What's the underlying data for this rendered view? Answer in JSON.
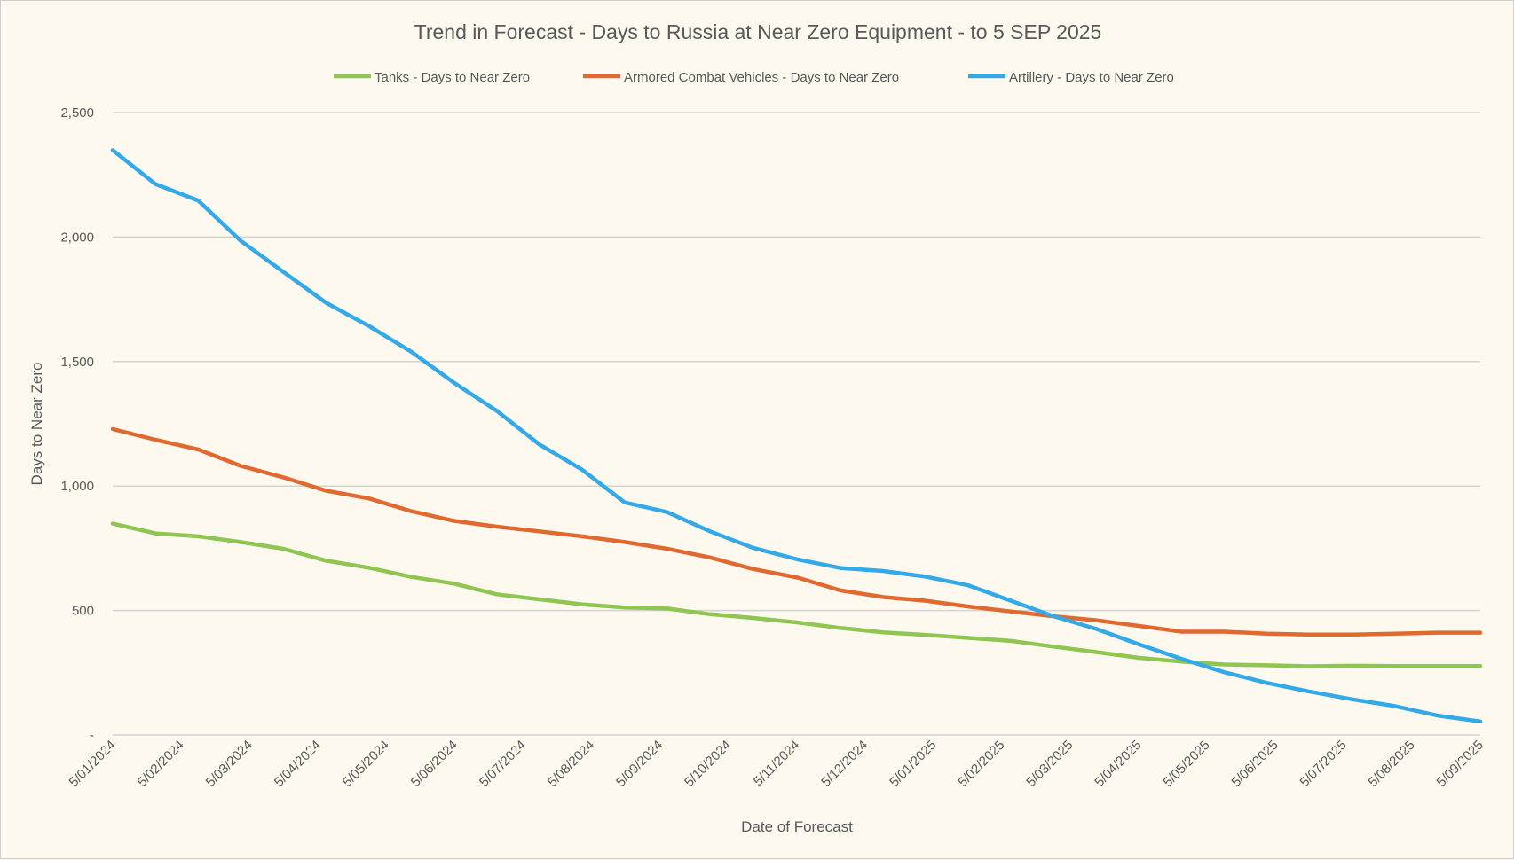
{
  "chart_data": {
    "type": "line",
    "title": "Trend in Forecast - Days to Russia at Near Zero Equipment - to 5 SEP 2025",
    "xlabel": "Date of Forecast",
    "ylabel": "Days to Near Zero",
    "ylim": [
      0,
      2500
    ],
    "yticks": [
      0,
      500,
      1000,
      1500,
      2000,
      2500
    ],
    "ytick_labels": [
      "-",
      "500",
      "1,000",
      "1,500",
      "2,000",
      "2,500"
    ],
    "xlim": [
      "2024-01-05",
      "2025-09-05"
    ],
    "xtick_labels": [
      "5/01/2024",
      "5/02/2024",
      "5/03/2024",
      "5/04/2024",
      "5/05/2024",
      "5/06/2024",
      "5/07/2024",
      "5/08/2024",
      "5/09/2024",
      "5/10/2024",
      "5/11/2024",
      "5/12/2024",
      "5/01/2025",
      "5/02/2025",
      "5/03/2025",
      "5/04/2025",
      "5/05/2025",
      "5/06/2025",
      "5/07/2025",
      "5/08/2025",
      "5/09/2025"
    ],
    "grid": true,
    "legend_position": "top",
    "x": [
      "2024-01-05",
      "2024-01-24",
      "2024-02-12",
      "2024-03-02",
      "2024-03-21",
      "2024-04-09",
      "2024-04-28",
      "2024-05-17",
      "2024-06-05",
      "2024-06-24",
      "2024-07-13",
      "2024-08-01",
      "2024-08-20",
      "2024-09-08",
      "2024-09-27",
      "2024-10-16",
      "2024-11-05",
      "2024-11-24",
      "2024-12-13",
      "2025-01-01",
      "2025-01-20",
      "2025-02-08",
      "2025-02-27",
      "2025-03-18",
      "2025-04-06",
      "2025-04-25",
      "2025-05-14",
      "2025-06-02",
      "2025-06-21",
      "2025-07-10",
      "2025-07-29",
      "2025-08-17",
      "2025-09-05"
    ],
    "series": [
      {
        "name": "Tanks - Days to Near Zero",
        "color": "#8fc651",
        "values": [
          849,
          810,
          798,
          775,
          748,
          700,
          672,
          635,
          608,
          565,
          545,
          525,
          512,
          508,
          485,
          470,
          452,
          430,
          412,
          402,
          390,
          378,
          355,
          333,
          310,
          295,
          283,
          280,
          276,
          278,
          277,
          277,
          277
        ]
      },
      {
        "name": "Armored Combat Vehicles - Days to Near Zero",
        "color": "#e0692f",
        "values": [
          1229,
          1186,
          1147,
          1081,
          1035,
          981,
          950,
          899,
          860,
          837,
          818,
          798,
          775,
          748,
          713,
          667,
          632,
          581,
          554,
          539,
          516,
          496,
          477,
          461,
          438,
          415,
          415,
          407,
          403,
          403,
          407,
          411,
          411
        ]
      },
      {
        "name": "Artillery - Days to Near Zero",
        "color": "#34a9e8",
        "values": [
          2349,
          2213,
          2147,
          1985,
          1860,
          1736,
          1643,
          1539,
          1415,
          1302,
          1167,
          1066,
          934,
          895,
          818,
          752,
          705,
          671,
          659,
          636,
          601,
          539,
          477,
          426,
          364,
          306,
          252,
          209,
          174,
          143,
          116,
          78,
          54
        ]
      }
    ]
  }
}
